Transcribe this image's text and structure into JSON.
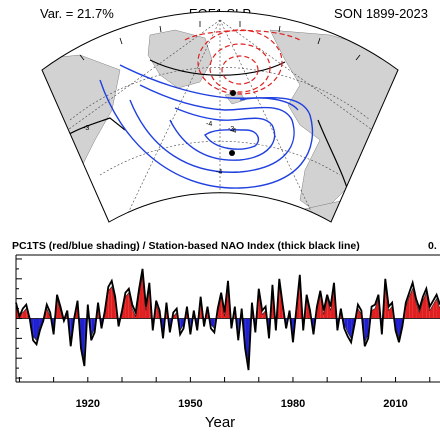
{
  "header": {
    "variance": "Var. = 21.7%",
    "title": "EOF1 SLP",
    "season": "SON 1899-2023"
  },
  "map": {
    "contour_labels": [
      "-3",
      "-4",
      "-3",
      "-4",
      "-4"
    ],
    "colors": {
      "land": "#d2d2d2",
      "positive": "#e02020",
      "negative": "#2040e0",
      "zero": "#000000"
    }
  },
  "chart_data": {
    "type": "area",
    "title": "PC1TS (red/blue shading) / Station-based NAO Index (thick black line)",
    "corr_label": "0.",
    "xlabel": "Year",
    "ylabel": "",
    "x_start": 1899,
    "x_end": 2023,
    "xlim": [
      1899,
      2023
    ],
    "ylim": [
      -3.2,
      3.2
    ],
    "xticks": [
      1920,
      1950,
      1980,
      2010
    ],
    "grid": false,
    "series": [
      {
        "kind": "pc_shading",
        "colors": {
          "positive": "#e02020",
          "negative": "#2020d0"
        },
        "values": [
          0.6,
          0.2,
          0.3,
          0.5,
          0.1,
          -0.9,
          -1.1,
          -0.4,
          -0.2,
          0.5,
          0.1,
          -0.7,
          1.0,
          0.4,
          -0.2,
          0.2,
          -1.1,
          0.1,
          0.8,
          -1.3,
          -2.1,
          0.5,
          -0.9,
          -0.5,
          0.6,
          -0.3,
          0.2,
          1.4,
          1.6,
          0.9,
          -0.2,
          0.2,
          1.1,
          1.3,
          0.5,
          0.1,
          1.2,
          2.2,
          0.4,
          1.5,
          -0.4,
          0.7,
          0.2,
          -0.8,
          0.6,
          -0.5,
          0.1,
          0.3,
          -0.6,
          -0.3,
          0.4,
          -0.6,
          0.2,
          -0.4,
          0.9,
          -0.2,
          0.4,
          -0.3,
          -0.5,
          0.3,
          1.1,
          0.1,
          1.6,
          -0.3,
          0.4,
          -0.9,
          0.3,
          -1.3,
          -2.2,
          0.6,
          -0.5,
          1.3,
          0.2,
          0.4,
          -0.8,
          1.4,
          -0.4,
          1.7,
          0.5,
          -0.3,
          0.2,
          -1.0,
          0.3,
          1.9,
          -0.4,
          1.0,
          0.2,
          -0.6,
          0.4,
          1.2,
          0.2,
          1.0,
          0.4,
          1.5,
          -0.4,
          0.3,
          -0.3,
          -0.7,
          -1.0,
          -0.1,
          0.5,
          0.2,
          -1.2,
          -0.8,
          0.4,
          0.5,
          1.0,
          -0.6,
          1.7,
          0.4,
          0.6,
          -0.4,
          -1.0,
          -0.2,
          0.6,
          1.1,
          1.5,
          0.8,
          0.3,
          0.9,
          1.3,
          0.4,
          0.7,
          1.0,
          0.5
        ]
      },
      {
        "kind": "nao_line",
        "color": "#000000",
        "values": [
          0.8,
          0.1,
          0.5,
          0.7,
          0.0,
          -1.1,
          -1.3,
          -0.6,
          -0.1,
          0.7,
          0.3,
          -0.8,
          1.2,
          0.6,
          -0.1,
          0.4,
          -1.4,
          0.0,
          0.9,
          -1.5,
          -2.4,
          0.7,
          -1.1,
          -0.7,
          0.8,
          -0.5,
          0.4,
          1.6,
          1.9,
          1.1,
          -0.4,
          0.4,
          1.3,
          1.5,
          0.7,
          0.3,
          1.5,
          2.5,
          0.6,
          1.8,
          -0.6,
          0.9,
          0.4,
          -1.0,
          0.8,
          -0.7,
          0.3,
          0.5,
          -0.8,
          -0.5,
          0.6,
          -0.8,
          0.4,
          -0.6,
          1.1,
          -0.4,
          0.6,
          -0.5,
          -0.7,
          0.5,
          1.3,
          0.3,
          1.9,
          -0.5,
          0.6,
          -1.1,
          0.5,
          -1.5,
          -2.6,
          0.8,
          -0.7,
          1.5,
          0.4,
          0.6,
          -1.0,
          1.7,
          -0.6,
          2.0,
          0.7,
          -0.5,
          0.4,
          -1.2,
          0.5,
          2.2,
          -0.6,
          1.2,
          0.4,
          -0.8,
          0.6,
          1.4,
          0.4,
          1.2,
          0.6,
          1.8,
          -0.6,
          0.5,
          -0.5,
          -0.9,
          -1.2,
          -0.3,
          0.7,
          0.4,
          -1.4,
          -1.0,
          0.6,
          0.7,
          1.2,
          -0.8,
          2.0,
          0.6,
          0.8,
          -0.6,
          -1.2,
          -0.4,
          0.8,
          1.3,
          1.8,
          1.0,
          0.5,
          1.1,
          1.5,
          0.6,
          0.9,
          1.2,
          0.7
        ]
      }
    ]
  }
}
